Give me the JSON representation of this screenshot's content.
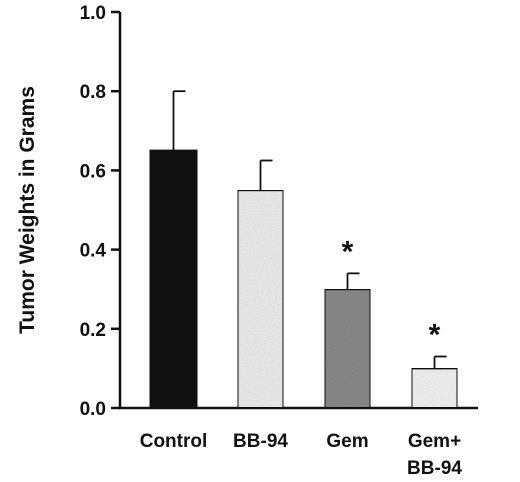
{
  "chart_data": {
    "type": "bar",
    "title": "",
    "xlabel": "",
    "ylabel": "Tumor Weights in Grams",
    "ylim": [
      0,
      1.0
    ],
    "yticks": [
      "0.0",
      "0.2",
      "0.4",
      "0.6",
      "0.8",
      "1.0"
    ],
    "categories": [
      {
        "lines": [
          "Control"
        ]
      },
      {
        "lines": [
          "BB-94"
        ]
      },
      {
        "lines": [
          "Gem"
        ]
      },
      {
        "lines": [
          "Gem+",
          "BB-94"
        ]
      }
    ],
    "values": [
      0.65,
      0.55,
      0.3,
      0.1
    ],
    "error_upper": [
      0.8,
      0.625,
      0.34,
      0.13
    ],
    "significance": [
      "",
      "",
      "*",
      "*"
    ],
    "bar_fills": [
      "#111111",
      "#ececec",
      "#8a8a8a",
      "#f2f2f2"
    ],
    "grid": false,
    "legend": "none"
  }
}
